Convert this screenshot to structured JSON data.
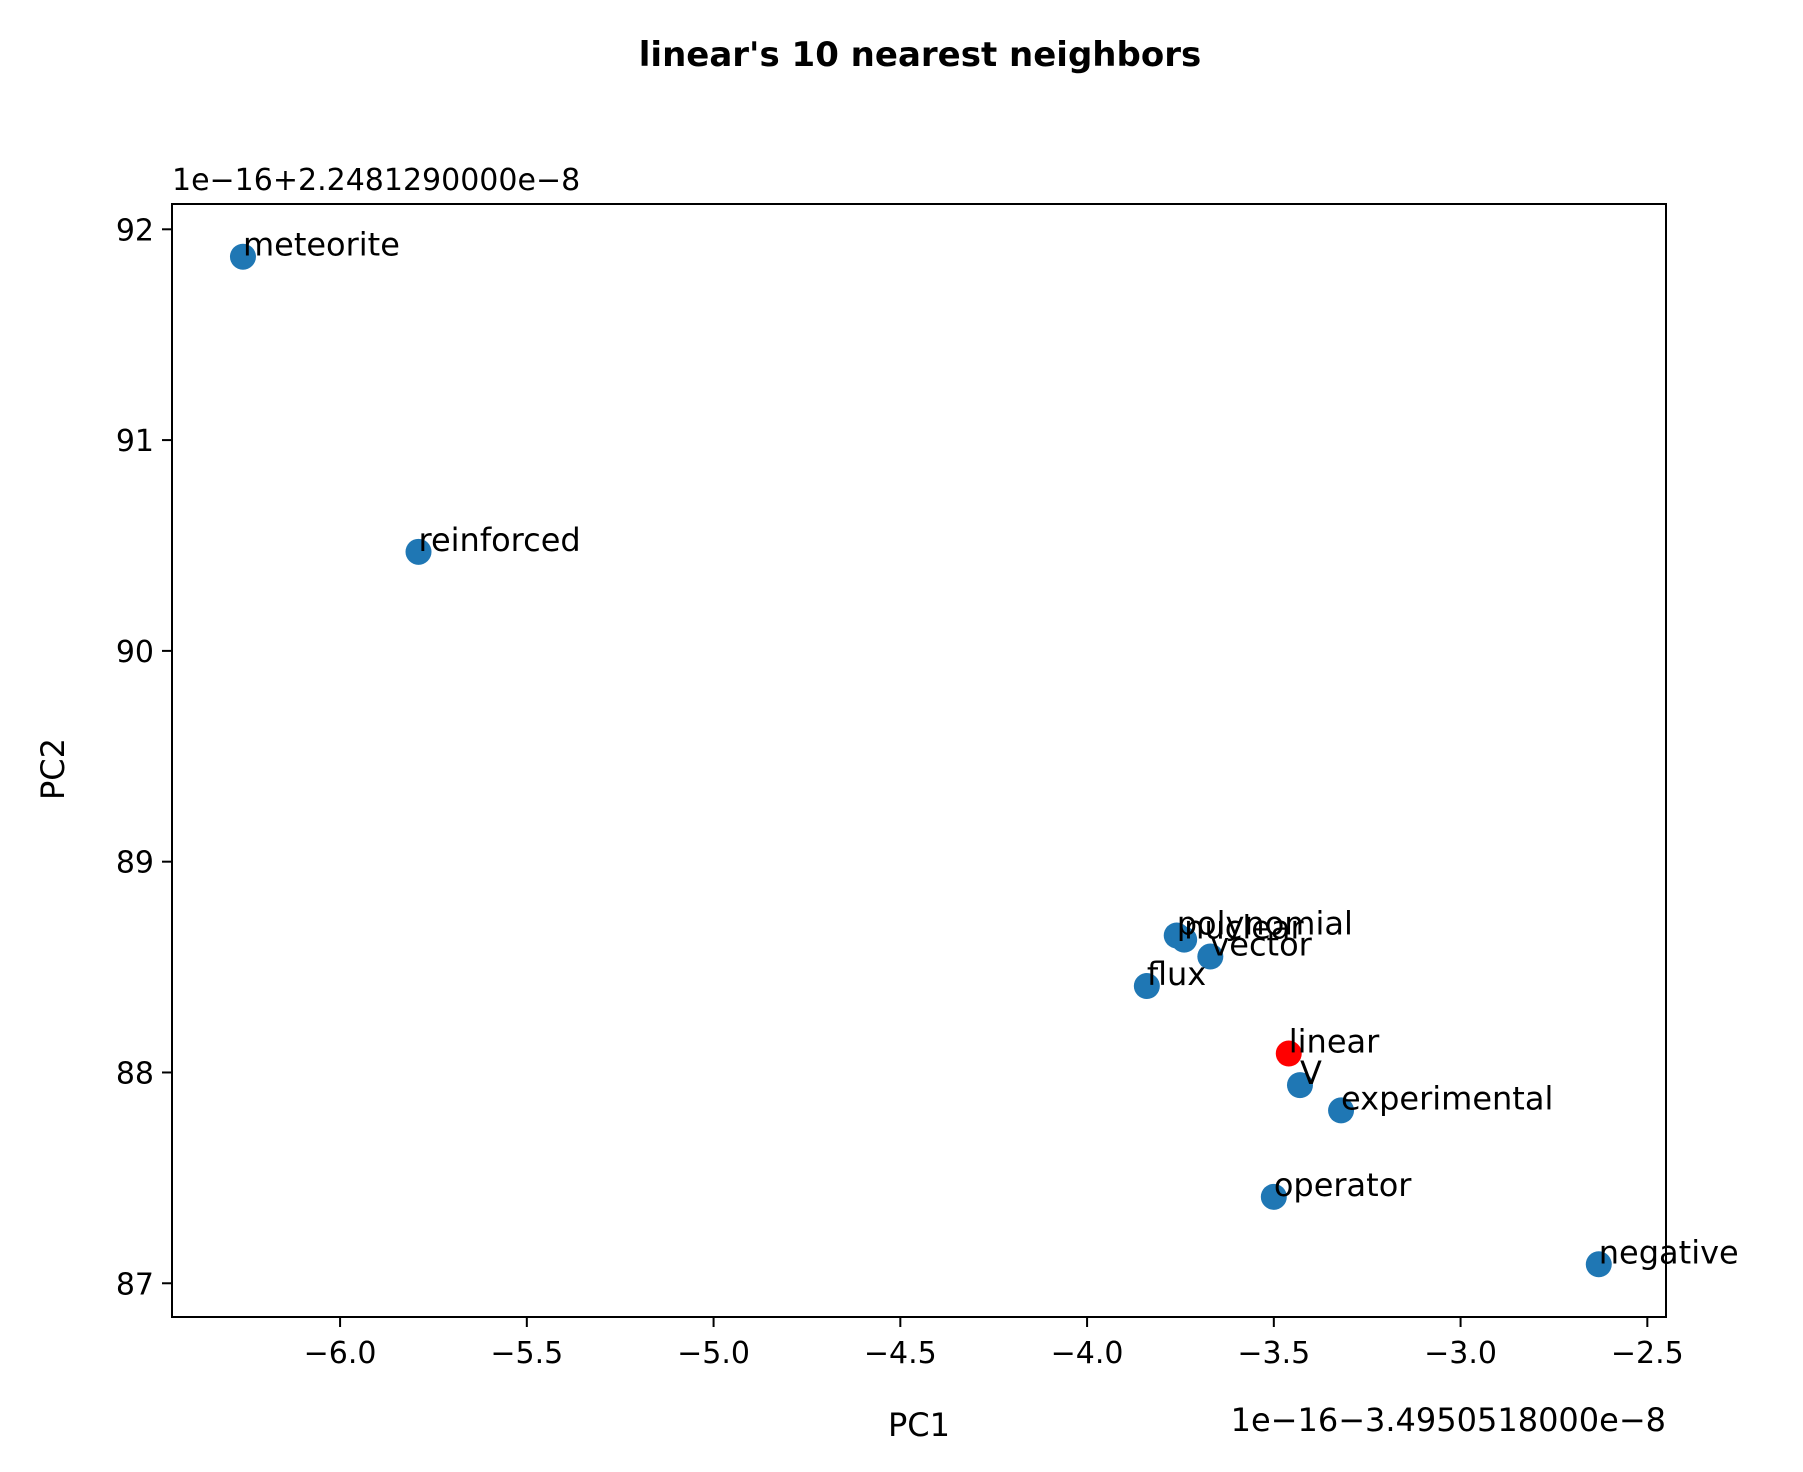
{
  "chart_data": {
    "type": "scatter",
    "title": "linear's 10 nearest neighbors",
    "xlabel": "PC1",
    "ylabel": "PC2",
    "x_offset_label": "1e−16−3.4950518000e−8",
    "y_offset_label": "1e−16+2.2481290000e−8",
    "xlim": [
      -6.45,
      -2.45
    ],
    "ylim": [
      86.84,
      92.12
    ],
    "xticks": [
      -6.0,
      -5.5,
      -5.0,
      -4.5,
      -4.0,
      -3.5,
      -3.0,
      -2.5
    ],
    "xtick_labels": [
      "−6.0",
      "−5.5",
      "−5.0",
      "−4.5",
      "−4.0",
      "−3.5",
      "−3.0",
      "−2.5"
    ],
    "yticks": [
      87,
      88,
      89,
      90,
      91,
      92
    ],
    "ytick_labels": [
      "87",
      "88",
      "89",
      "90",
      "91",
      "92"
    ],
    "grid": false,
    "colors": {
      "neighbor": "#1f77b4",
      "query": "#ff0000"
    },
    "points": [
      {
        "label": "meteorite",
        "x": -6.26,
        "y": 91.87,
        "query": false
      },
      {
        "label": "reinforced",
        "x": -5.79,
        "y": 90.47,
        "query": false
      },
      {
        "label": "polynomial",
        "x": -3.76,
        "y": 88.65,
        "query": false
      },
      {
        "label": "nuclear",
        "x": -3.74,
        "y": 88.63,
        "query": false
      },
      {
        "label": "vector",
        "x": -3.67,
        "y": 88.55,
        "query": false
      },
      {
        "label": "flux",
        "x": -3.84,
        "y": 88.41,
        "query": false
      },
      {
        "label": "linear",
        "x": -3.46,
        "y": 88.09,
        "query": true
      },
      {
        "label": "V",
        "x": -3.43,
        "y": 87.94,
        "query": false
      },
      {
        "label": "experimental",
        "x": -3.32,
        "y": 87.82,
        "query": false
      },
      {
        "label": "operator",
        "x": -3.5,
        "y": 87.41,
        "query": false
      },
      {
        "label": "negative",
        "x": -2.63,
        "y": 87.09,
        "query": false
      }
    ]
  }
}
